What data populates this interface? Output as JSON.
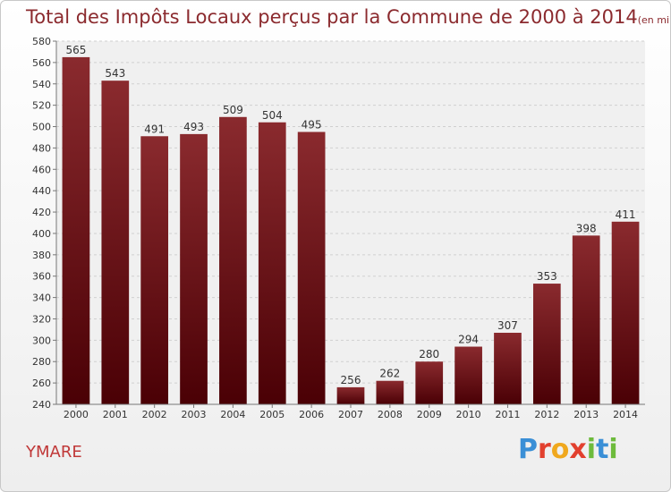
{
  "chart_data": {
    "type": "bar",
    "title": "Total des Impôts Locaux perçus par la Commune de 2000 à 2014",
    "subtitle": "(en milliers d'€)",
    "categories": [
      "2000",
      "2001",
      "2002",
      "2003",
      "2004",
      "2005",
      "2006",
      "2007",
      "2008",
      "2009",
      "2010",
      "2011",
      "2012",
      "2013",
      "2014"
    ],
    "values": [
      565,
      543,
      491,
      493,
      509,
      504,
      495,
      256,
      262,
      280,
      294,
      307,
      353,
      398,
      411
    ],
    "yticks": [
      240,
      260,
      280,
      300,
      320,
      340,
      360,
      380,
      400,
      420,
      440,
      460,
      480,
      500,
      520,
      540,
      560,
      580
    ],
    "ylim": [
      240,
      580
    ],
    "grid": true,
    "legend": "none",
    "bar_color": "#7a1a1e",
    "bar_color_dark": "#4a0005"
  },
  "commune": "YMARE",
  "brand": {
    "letters": [
      "P",
      "r",
      "o",
      "x",
      "i",
      "t",
      "i"
    ],
    "colors": [
      "#3a8fd6",
      "#e2402e",
      "#f0a81e",
      "#e2402e",
      "#6dbb3c",
      "#3a8fd6",
      "#6dbb3c"
    ]
  }
}
